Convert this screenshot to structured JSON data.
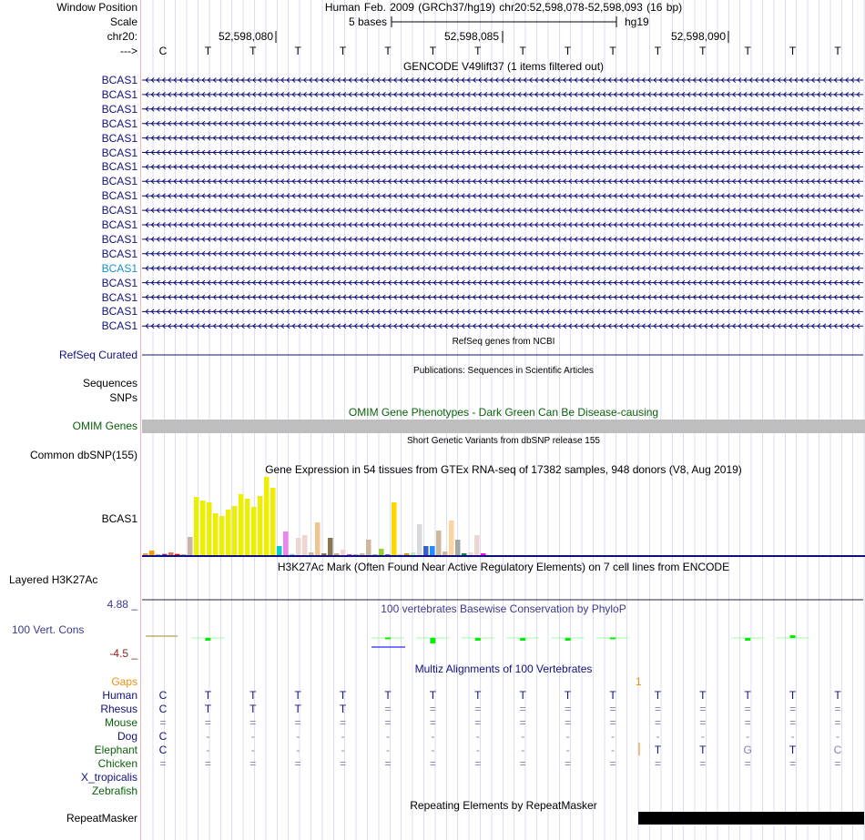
{
  "header": {
    "window_position_label": "Window Position",
    "window_position_value": "Human Feb. 2009 (GRCh37/hg19)   chr20:52,598,078-52,598,093 (16 bp)",
    "scale_label": "Scale",
    "scale_text": "5 bases",
    "scale_assembly": "hg19",
    "chrom_label": "chr20:",
    "ticks": [
      "52,598,080",
      "52,598,085",
      "52,598,090"
    ],
    "strand_label": "--->",
    "sequence": [
      "C",
      "T",
      "T",
      "T",
      "T",
      "T",
      "T",
      "T",
      "T",
      "T",
      "T",
      "T",
      "T",
      "T",
      "T",
      "T"
    ]
  },
  "gencode": {
    "title": "GENCODE V49lift37 (1 items filtered out)",
    "genes": [
      "BCAS1",
      "BCAS1",
      "BCAS1",
      "BCAS1",
      "BCAS1",
      "BCAS1",
      "BCAS1",
      "BCAS1",
      "BCAS1",
      "BCAS1",
      "BCAS1",
      "BCAS1",
      "BCAS1",
      "BCAS1",
      "BCAS1",
      "BCAS1",
      "BCAS1",
      "BCAS1"
    ],
    "highlighted_index": 13
  },
  "refseq": {
    "title": "RefSeq genes from NCBI",
    "label": "RefSeq Curated"
  },
  "publications": {
    "title": "Publications: Sequences in Scientific Articles",
    "labels": [
      "Sequences",
      "SNPs"
    ]
  },
  "omim": {
    "title": "OMIM Gene Phenotypes - Dark Green Can Be Disease-causing",
    "label": "OMIM Genes"
  },
  "dbsnp": {
    "title": "Short Genetic Variants from dbSNP release 155",
    "label": "Common dbSNP(155)"
  },
  "gtex": {
    "title": "Gene Expression in 54 tissues from GTEx RNA-seq of 17382 samples, 948 donors (V8, Aug 2019)",
    "label": "BCAS1"
  },
  "chart_data": {
    "type": "bar",
    "title": "Gene Expression in 54 tissues from GTEx RNA-seq of 17382 samples, 948 donors (V8, Aug 2019)",
    "xlabel": "",
    "ylabel": "",
    "ylim": [
      0,
      86
    ],
    "values": [
      2,
      5,
      0.3,
      1.3,
      3,
      1.3,
      0.3,
      20,
      64,
      60,
      58,
      46,
      43,
      50,
      54,
      67,
      62,
      53,
      65,
      86,
      74,
      10,
      26,
      1.3,
      19,
      22,
      3,
      36,
      2,
      19,
      2,
      6,
      1,
      0.3,
      2,
      17,
      0.3,
      7,
      1,
      58,
      1,
      2,
      3,
      34,
      10,
      10,
      27,
      4,
      38,
      17,
      2,
      3,
      22,
      2
    ],
    "colors": [
      "#e8a050",
      "#ff9900",
      "#aaaaaa",
      "#8b1a8b",
      "#ee6a50",
      "#ff0000",
      "#aaaaaa",
      "#c8b4a0",
      "#eeee00",
      "#eeee00",
      "#eeee00",
      "#eeee00",
      "#eeee00",
      "#eeee00",
      "#eeee00",
      "#eeee00",
      "#eeee00",
      "#eeee00",
      "#eeee00",
      "#eeee00",
      "#eeee00",
      "#00cdcd",
      "#ee82ee",
      "#9ac0cd",
      "#eed5d2",
      "#eed5d2",
      "#cdb79e",
      "#eec591",
      "#8b7355",
      "#8b7355",
      "#cdaa7d",
      "#eed5d2",
      "#b452cd",
      "#aaaaaa",
      "#cdb79e",
      "#cdb79e",
      "#aaaaaa",
      "#9acd32",
      "#7a67ee",
      "#ffd700",
      "#ffb6c1",
      "#cd9b1d",
      "#b4eeb4",
      "#d9d9d9",
      "#3a5fcd",
      "#1e90ff",
      "#cdb79e",
      "#cdb79e",
      "#ffd39b",
      "#a6a6a6",
      "#008b45",
      "#eed5d2",
      "#eed5d2",
      "#ff00ff"
    ]
  },
  "h3k27ac": {
    "title": "H3K27Ac Mark (Often Found Near Active Regulatory Elements) on 7 cell lines from ENCODE",
    "label": "Layered H3K27Ac"
  },
  "phylop": {
    "title": "100 vertebrates Basewise Conservation by PhyloP",
    "label": "100 Vert. Cons",
    "max": "4.88 _",
    "min": "-4.5 _"
  },
  "multiz": {
    "title": "Multiz Alignments of 100 Vertebrates",
    "gaps_label": "Gaps",
    "gap_count": "1",
    "species": [
      {
        "name": "Human",
        "color": "#10107c",
        "bases": [
          "C",
          "T",
          "T",
          "T",
          "T",
          "T",
          "T",
          "T",
          "T",
          "T",
          "T",
          "T",
          "T",
          "T",
          "T",
          "T"
        ]
      },
      {
        "name": "Rhesus",
        "color": "#10107c",
        "bases": [
          "C",
          "T",
          "T",
          "T",
          "T",
          "=",
          "=",
          "=",
          "=",
          "=",
          "=",
          "=",
          "=",
          "=",
          "=",
          "="
        ]
      },
      {
        "name": "Mouse",
        "color": "#0c600c",
        "bases": [
          "=",
          "=",
          "=",
          "=",
          "=",
          "=",
          "=",
          "=",
          "=",
          "=",
          "=",
          "=",
          "=",
          "=",
          "=",
          "="
        ]
      },
      {
        "name": "Dog",
        "color": "#10107c",
        "bases": [
          "C",
          "-",
          "-",
          "-",
          "-",
          "-",
          "-",
          "-",
          "-",
          "-",
          "-",
          "-",
          "-",
          "-",
          "-",
          "-"
        ]
      },
      {
        "name": "Elephant",
        "color": "#0c600c",
        "bases": [
          "C",
          "-",
          "-",
          "-",
          "-",
          "-",
          "-",
          "-",
          "-",
          "-",
          "-",
          "T",
          "T",
          "G",
          "T",
          "C"
        ]
      },
      {
        "name": "Chicken",
        "color": "#0c600c",
        "bases": [
          "=",
          "=",
          "=",
          "=",
          "=",
          "=",
          "=",
          "=",
          "=",
          "=",
          "=",
          "=",
          "=",
          "=",
          "=",
          "="
        ]
      },
      {
        "name": "X_tropicalis",
        "color": "#10107c",
        "bases": []
      },
      {
        "name": "Zebrafish",
        "color": "#0c600c",
        "bases": []
      }
    ]
  },
  "repeatmasker": {
    "title": "Repeating Elements by RepeatMasker",
    "label": "RepeatMasker"
  }
}
